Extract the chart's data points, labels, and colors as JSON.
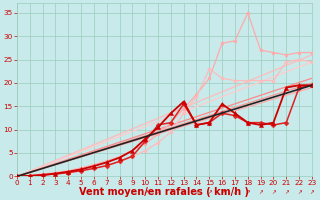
{
  "background_color": "#c8eaea",
  "grid_color": "#99ccbb",
  "xlim": [
    0,
    23
  ],
  "ylim": [
    0,
    37
  ],
  "xticks": [
    0,
    1,
    2,
    3,
    4,
    5,
    6,
    7,
    8,
    9,
    10,
    11,
    12,
    13,
    14,
    15,
    16,
    17,
    18,
    19,
    20,
    21,
    22,
    23
  ],
  "yticks": [
    0,
    5,
    10,
    15,
    20,
    25,
    30,
    35
  ],
  "xlabel": "Vent moyen/en rafales ( km/h )",
  "xlabel_color": "#cc0000",
  "xlabel_fontsize": 7.0,
  "tick_color": "#cc0000",
  "tick_fontsize": 5.2,
  "series": [
    {
      "comment": "very light pink straight line, slope to ~26 at x=23",
      "x": [
        0,
        23
      ],
      "y": [
        0,
        26.0
      ],
      "color": "#ffbbbb",
      "lw": 0.9,
      "marker": null,
      "ms": 0,
      "zorder": 2
    },
    {
      "comment": "light pink straight line, slope to ~24.5 at x=23",
      "x": [
        0,
        23
      ],
      "y": [
        0,
        24.5
      ],
      "color": "#ffcccc",
      "lw": 0.9,
      "marker": null,
      "ms": 0,
      "zorder": 2
    },
    {
      "comment": "light pink with circle markers - irregular, goes up to ~35 at x=19 then down",
      "x": [
        0,
        1,
        2,
        3,
        4,
        5,
        6,
        7,
        8,
        9,
        10,
        11,
        12,
        13,
        14,
        15,
        16,
        17,
        18,
        19,
        20,
        21,
        22,
        23
      ],
      "y": [
        0,
        0.2,
        0.5,
        0.8,
        1.2,
        1.8,
        2.5,
        3.3,
        4.2,
        5.5,
        7.0,
        9.0,
        11.5,
        14.5,
        17.5,
        21.0,
        28.5,
        29.0,
        35.0,
        27.0,
        26.5,
        26.0,
        26.5,
        26.5
      ],
      "color": "#ffaaaa",
      "lw": 0.9,
      "marker": "o",
      "ms": 2.2,
      "zorder": 3
    },
    {
      "comment": "light pink circle markers - peaks ~23 at x=12, comes down then up",
      "x": [
        0,
        1,
        2,
        3,
        4,
        5,
        6,
        7,
        8,
        9,
        10,
        11,
        12,
        13,
        14,
        15,
        16,
        17,
        18,
        19,
        20,
        21,
        22,
        23
      ],
      "y": [
        0,
        0.1,
        0.3,
        0.5,
        0.8,
        1.2,
        1.7,
        2.3,
        3.1,
        4.2,
        5.5,
        7.2,
        9.5,
        13.5,
        17.0,
        23.0,
        21.0,
        20.5,
        20.5,
        20.5,
        20.5,
        24.5,
        25.0,
        24.5
      ],
      "color": "#ffbbbb",
      "lw": 0.9,
      "marker": "o",
      "ms": 2.2,
      "zorder": 3
    },
    {
      "comment": "medium red straight line to ~21 at x=23",
      "x": [
        0,
        23
      ],
      "y": [
        0,
        21.0
      ],
      "color": "#ff8888",
      "lw": 0.9,
      "marker": null,
      "ms": 0,
      "zorder": 2
    },
    {
      "comment": "medium red straight line to ~20 at x=23",
      "x": [
        0,
        23
      ],
      "y": [
        0,
        20.0
      ],
      "color": "#ff9999",
      "lw": 0.9,
      "marker": null,
      "ms": 0,
      "zorder": 2
    },
    {
      "comment": "medium red straight line to ~19 at x=23",
      "x": [
        0,
        23
      ],
      "y": [
        0,
        19.0
      ],
      "color": "#ffaaaa",
      "lw": 0.9,
      "marker": null,
      "ms": 0,
      "zorder": 2
    },
    {
      "comment": "dark red diamond markers - jagged, peaks ~15.5 at x=13",
      "x": [
        0,
        1,
        2,
        3,
        4,
        5,
        6,
        7,
        8,
        9,
        10,
        11,
        12,
        13,
        14,
        15,
        16,
        17,
        18,
        19,
        20,
        21,
        22,
        23
      ],
      "y": [
        0,
        0.1,
        0.3,
        0.5,
        0.8,
        1.2,
        1.7,
        2.3,
        3.2,
        4.3,
        7.5,
        11.0,
        11.5,
        15.5,
        11.0,
        11.5,
        13.5,
        13.0,
        11.5,
        11.5,
        11.0,
        11.5,
        19.0,
        19.5
      ],
      "color": "#dd2222",
      "lw": 1.1,
      "marker": "D",
      "ms": 2.5,
      "zorder": 5
    },
    {
      "comment": "dark red triangle markers - jagged",
      "x": [
        0,
        1,
        2,
        3,
        4,
        5,
        6,
        7,
        8,
        9,
        10,
        11,
        12,
        13,
        14,
        15,
        16,
        17,
        18,
        19,
        20,
        21,
        22,
        23
      ],
      "y": [
        0,
        0.1,
        0.3,
        0.6,
        1.0,
        1.5,
        2.2,
        3.0,
        4.0,
        5.5,
        8.0,
        10.5,
        13.5,
        16.0,
        11.0,
        11.5,
        15.5,
        13.5,
        11.5,
        11.0,
        11.5,
        19.0,
        19.5,
        19.5
      ],
      "color": "#cc0000",
      "lw": 1.3,
      "marker": "^",
      "ms": 3.0,
      "zorder": 5
    },
    {
      "comment": "dark/black straight reference line to ~19.5 at x=23",
      "x": [
        0,
        23
      ],
      "y": [
        0,
        19.5
      ],
      "color": "#222222",
      "lw": 1.2,
      "marker": null,
      "ms": 0,
      "zorder": 6
    }
  ],
  "bottom_arrows_x": [
    10,
    11,
    12,
    13,
    14,
    15,
    16,
    17,
    18,
    19,
    20,
    21,
    22,
    23
  ],
  "arrow_color": "#cc0000"
}
